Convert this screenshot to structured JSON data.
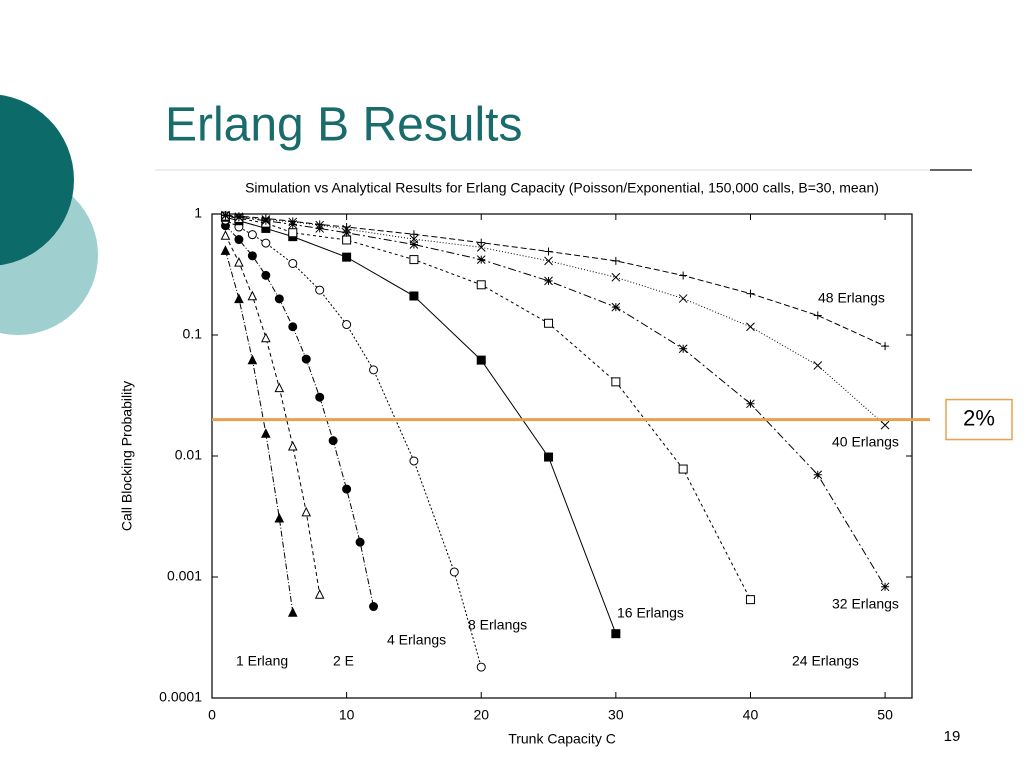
{
  "slide": {
    "title": "Erlang B Results",
    "page_number": "19"
  },
  "chart_data": {
    "type": "line",
    "title": "Simulation vs Analytical Results for Erlang Capacity  (Poisson/Exponential, 150,000 calls, B=30, mean)",
    "x_label": "Trunk Capacity C",
    "y_label": "Call Blocking Probability",
    "xlim": [
      0,
      52
    ],
    "xticks": [
      0,
      10,
      20,
      30,
      40,
      50
    ],
    "ylim": [
      0.0001,
      1
    ],
    "yticks": [
      1,
      0.1,
      0.01,
      0.001,
      0.0001
    ],
    "y_scale": "log",
    "threshold": {
      "value": 0.02,
      "label": "2%",
      "color": "#e8a050"
    },
    "series": [
      {
        "name": "1 Erlang",
        "color": "#000000",
        "marker": "triangle-filled",
        "x": [
          1,
          2,
          3,
          4,
          5,
          6
        ],
        "values": [
          0.5,
          0.2,
          0.0625,
          0.0154,
          0.00307,
          0.000511
        ]
      },
      {
        "name": "2 E",
        "color": "#000000",
        "marker": "triangle-open",
        "x": [
          1,
          2,
          3,
          4,
          5,
          6,
          7,
          8
        ],
        "values": [
          0.667,
          0.4,
          0.211,
          0.095,
          0.0367,
          0.0121,
          0.00345,
          0.00072
        ]
      },
      {
        "name": "4 Erlangs",
        "color": "#000000",
        "marker": "circle-filled",
        "x": [
          1,
          2,
          3,
          4,
          5,
          6,
          7,
          8,
          9,
          10,
          11,
          12
        ],
        "values": [
          0.8,
          0.615,
          0.451,
          0.311,
          0.199,
          0.117,
          0.0632,
          0.0306,
          0.0134,
          0.00533,
          0.00194,
          0.00057
        ]
      },
      {
        "name": "8 Erlangs",
        "color": "#000000",
        "marker": "circle-open",
        "x": [
          1,
          2,
          3,
          4,
          6,
          8,
          10,
          12,
          15,
          18,
          20
        ],
        "values": [
          0.889,
          0.78,
          0.675,
          0.575,
          0.39,
          0.235,
          0.122,
          0.0515,
          0.0091,
          0.0011,
          0.00018
        ]
      },
      {
        "name": "16 Erlangs",
        "color": "#000000",
        "marker": "square-filled",
        "x": [
          1,
          2,
          4,
          6,
          10,
          15,
          20,
          25,
          30
        ],
        "values": [
          0.94,
          0.88,
          0.76,
          0.65,
          0.44,
          0.21,
          0.062,
          0.0098,
          0.00034
        ]
      },
      {
        "name": "24 Erlangs",
        "color": "#000000",
        "marker": "square-open",
        "x": [
          1,
          2,
          4,
          6,
          10,
          15,
          20,
          25,
          30,
          35,
          40
        ],
        "values": [
          0.96,
          0.92,
          0.84,
          0.7,
          0.61,
          0.42,
          0.26,
          0.125,
          0.041,
          0.0078,
          0.00065
        ]
      },
      {
        "name": "32 Erlangs",
        "color": "#000000",
        "marker": "asterisk",
        "x": [
          1,
          2,
          4,
          6,
          8,
          10,
          15,
          20,
          25,
          30,
          35,
          40,
          45,
          50
        ],
        "values": [
          0.97,
          0.94,
          0.88,
          0.82,
          0.76,
          0.7,
          0.56,
          0.42,
          0.28,
          0.17,
          0.077,
          0.027,
          0.007,
          0.00083
        ]
      },
      {
        "name": "40 Erlangs",
        "color": "#000000",
        "marker": "cross",
        "x": [
          1,
          2,
          4,
          6,
          8,
          10,
          15,
          20,
          25,
          30,
          35,
          40,
          45,
          50
        ],
        "values": [
          0.98,
          0.95,
          0.9,
          0.86,
          0.81,
          0.75,
          0.62,
          0.53,
          0.41,
          0.3,
          0.2,
          0.117,
          0.056,
          0.018
        ]
      },
      {
        "name": "48 Erlangs",
        "color": "#000000",
        "marker": "plus",
        "x": [
          1,
          2,
          4,
          6,
          8,
          10,
          15,
          20,
          25,
          30,
          35,
          40,
          45,
          50
        ],
        "values": [
          0.98,
          0.96,
          0.92,
          0.87,
          0.82,
          0.78,
          0.68,
          0.58,
          0.49,
          0.41,
          0.31,
          0.22,
          0.145,
          0.081
        ]
      }
    ]
  }
}
